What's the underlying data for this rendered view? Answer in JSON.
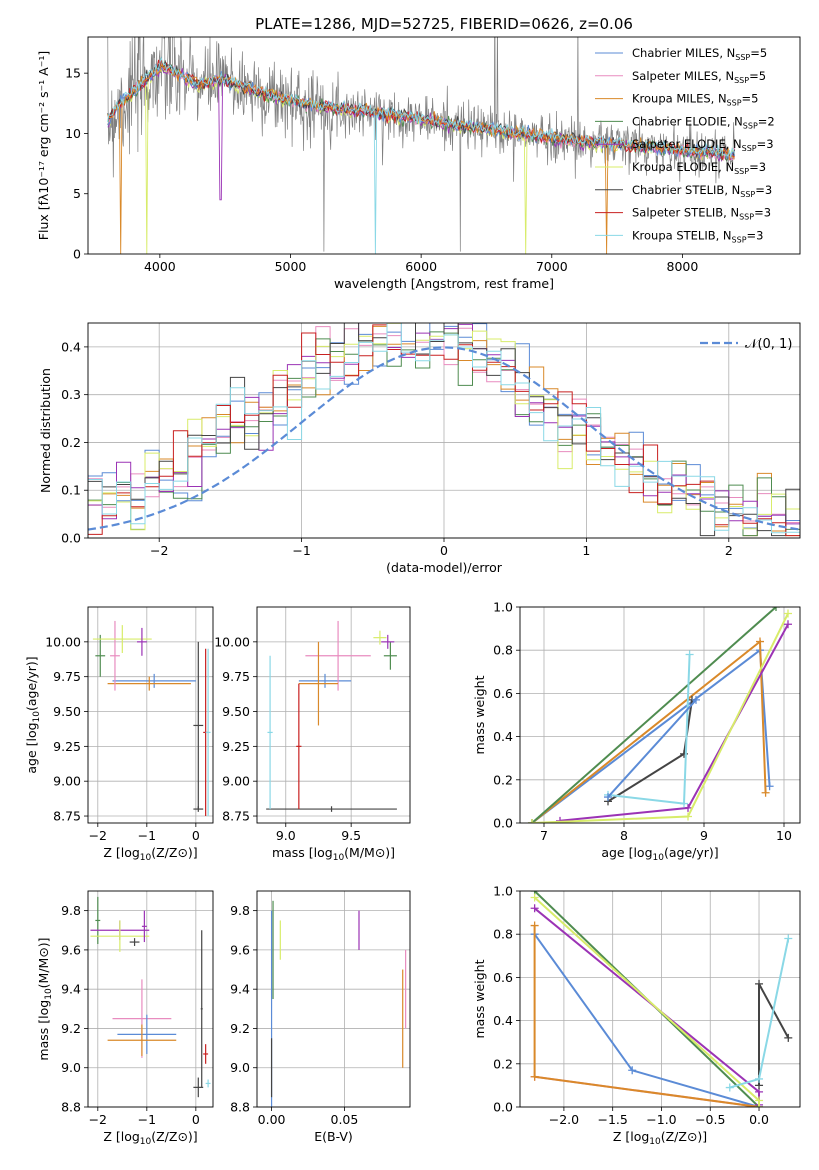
{
  "figure": {
    "title": "PLATE=1286, MJD=52725, FIBERID=0626, z=0.06"
  },
  "colors": {
    "chabrier_miles": "#5b8bd6",
    "salpeter_miles": "#e88cbf",
    "kroupa_miles": "#d9892a",
    "chabrier_elodie": "#4f8c50",
    "salpeter_elodie": "#9b33b5",
    "kroupa_elodie": "#d8ec6a",
    "chabrier_stelib": "#444444",
    "salpeter_stelib": "#c82020",
    "kroupa_stelib": "#8ad8e6",
    "data_spectrum": "#7f7f7f",
    "normal_curve": "#5b8bd6",
    "grid": "#b0b0b0"
  },
  "chart_data": [
    {
      "id": "spectrum",
      "type": "line",
      "title": "PLATE=1286, MJD=52725, FIBERID=0626, z=0.06",
      "xlabel": "wavelength [Angstrom, rest frame]",
      "ylabel": "Flux [fλ10⁻¹⁷ erg cm⁻² s⁻¹ A⁻¹]",
      "xlim": [
        3450,
        8900
      ],
      "ylim": [
        0,
        18
      ],
      "xticks": [
        4000,
        5000,
        6000,
        7000,
        8000
      ],
      "yticks": [
        0,
        5,
        10,
        15
      ],
      "grid": false,
      "legend_position": "top-right",
      "legend": [
        {
          "main": "Chabrier MILES, N",
          "sub": "SSP",
          "suffix": "=5",
          "color": "#5b8bd6"
        },
        {
          "main": "Salpeter MILES, N",
          "sub": "SSP",
          "suffix": "=5",
          "color": "#e88cbf"
        },
        {
          "main": "Kroupa MILES, N",
          "sub": "SSP",
          "suffix": "=5",
          "color": "#d9892a"
        },
        {
          "main": "Chabrier ELODIE, N",
          "sub": "SSP",
          "suffix": "=2",
          "color": "#4f8c50"
        },
        {
          "main": "Salpeter ELODIE, N",
          "sub": "SSP",
          "suffix": "=3",
          "color": "#9b33b5"
        },
        {
          "main": "Kroupa ELODIE, N",
          "sub": "SSP",
          "suffix": "=3",
          "color": "#d8ec6a"
        },
        {
          "main": "Chabrier STELIB, N",
          "sub": "SSP",
          "suffix": "=3",
          "color": "#444444"
        },
        {
          "main": "Salpeter STELIB, N",
          "sub": "SSP",
          "suffix": "=3",
          "color": "#c82020"
        },
        {
          "main": "Kroupa STELIB, N",
          "sub": "SSP",
          "suffix": "=3",
          "color": "#8ad8e6"
        }
      ],
      "continuum_model": {
        "x": [
          3600,
          3700,
          3800,
          3900,
          4000,
          4100,
          4200,
          4300,
          4400,
          4500,
          4600,
          4800,
          5000,
          5200,
          5400,
          5600,
          5800,
          6000,
          6200,
          6400,
          6600,
          6800,
          7000,
          7200,
          7400,
          7600,
          7800,
          8000,
          8200,
          8400
        ],
        "y": [
          11.0,
          12.5,
          13.5,
          14.5,
          15.5,
          15.2,
          14.6,
          14.0,
          14.3,
          14.5,
          14.0,
          13.3,
          12.7,
          12.3,
          12.0,
          11.8,
          11.5,
          11.2,
          10.8,
          10.5,
          10.2,
          9.9,
          9.6,
          9.4,
          9.2,
          9.0,
          8.8,
          8.6,
          8.4,
          8.2
        ]
      },
      "notes_spikes": [
        {
          "x": 3700,
          "series": "Kroupa MILES",
          "drop_to": 0
        },
        {
          "x": 3900,
          "series": "Kroupa ELODIE",
          "drop_to": 0
        },
        {
          "x": 5650,
          "series": "Kroupa STELIB",
          "drop_to": 0
        },
        {
          "x": 6800,
          "series": "Kroupa ELODIE",
          "drop_to": 0
        },
        {
          "x": 7420,
          "series": "Kroupa MILES",
          "drop_to": 0
        }
      ]
    },
    {
      "id": "residuals",
      "type": "line",
      "xlabel": "(data-model)/error",
      "ylabel": "Normed distribution",
      "xlim": [
        -2.5,
        2.5
      ],
      "ylim": [
        0,
        0.45
      ],
      "xticks": [
        -2,
        -1,
        0,
        1,
        2
      ],
      "xtick_labels": [
        "−2",
        "−1",
        "0",
        "1",
        "2"
      ],
      "yticks": [
        0.0,
        0.1,
        0.2,
        0.3,
        0.4
      ],
      "ytick_labels": [
        "0.0",
        "0.1",
        "0.2",
        "0.3",
        "0.4"
      ],
      "grid": true,
      "legend_position": "top-right",
      "legend": [
        {
          "label": "𝒩(0, 1)",
          "color": "#5b8bd6",
          "style": "dashed"
        }
      ],
      "normal_curve": {
        "mean": 0,
        "sigma": 1
      }
    },
    {
      "id": "age_vs_Z",
      "type": "scatter",
      "xlabel_main": "Z [log",
      "xlabel_sub": "10",
      "xlabel_rest": "(Z/Z⊙)]",
      "ylabel_main": "age  [log",
      "ylabel_sub": "10",
      "ylabel_rest": "(age/yr)]",
      "xlim": [
        -2.2,
        0.35
      ],
      "ylim": [
        8.7,
        10.25
      ],
      "xticks": [
        -2,
        -1,
        0
      ],
      "xtick_labels": [
        "−2",
        "−1",
        "0"
      ],
      "yticks": [
        8.75,
        9.0,
        9.25,
        9.5,
        9.75,
        10.0
      ],
      "ytick_labels": [
        "8.75",
        "9.00",
        "9.25",
        "9.50",
        "9.75",
        "10.00"
      ],
      "grid": true,
      "points": [
        {
          "series": "Chabrier MILES",
          "x": -0.85,
          "xerr": 0.85,
          "y": 9.72,
          "yerr": 0.05
        },
        {
          "series": "Kroupa MILES",
          "x": -0.95,
          "xerr": 0.85,
          "y": 9.7,
          "yerr": 0.05
        },
        {
          "series": "Salpeter MILES",
          "x": -1.65,
          "xerr": 0.1,
          "y": 9.9,
          "yerr": 0.25
        },
        {
          "series": "Chabrier ELODIE",
          "x": -1.95,
          "xerr": 0.1,
          "y": 9.9,
          "yerr": 0.15
        },
        {
          "series": "Kroupa ELODIE",
          "x": -1.5,
          "xerr": 0.6,
          "y": 10.02,
          "yerr": 0.1
        },
        {
          "series": "Salpeter ELODIE",
          "x": -1.1,
          "xerr": 0.1,
          "y": 10.0,
          "yerr": 0.1
        },
        {
          "series": "Chabrier STELIB",
          "x": 0.05,
          "xerr": 0.1,
          "y": 9.4,
          "yerr": 0.6
        },
        {
          "series": "Salpeter STELIB",
          "x": 0.2,
          "xerr": 0.05,
          "y": 9.35,
          "yerr": 0.6
        },
        {
          "series": "Kroupa STELIB",
          "x": 0.25,
          "xerr": 0.05,
          "y": 9.35,
          "yerr": 0.6
        },
        {
          "series": "Chabrier STELIB",
          "x": 0.05,
          "xerr": 0.1,
          "y": 8.8,
          "yerr": 0.02
        }
      ]
    },
    {
      "id": "age_vs_mass",
      "type": "scatter",
      "xlabel_main": "mass [log",
      "xlabel_sub": "10",
      "xlabel_rest": "(M/M⊙)]",
      "xlim": [
        8.78,
        9.95
      ],
      "ylim": [
        8.7,
        10.25
      ],
      "xticks": [
        9.0,
        9.5
      ],
      "xtick_labels": [
        "9.0",
        "9.5"
      ],
      "yticks": [
        8.75,
        9.0,
        9.25,
        9.5,
        9.75,
        10.0
      ],
      "ytick_labels": [
        "8.75",
        "9.00",
        "9.25",
        "9.50",
        "9.75",
        "10.00"
      ],
      "grid": true,
      "points": [
        {
          "series": "Chabrier MILES",
          "x": 9.3,
          "xerr": 0.2,
          "y": 9.72,
          "yerr": 0.05
        },
        {
          "series": "Salpeter MILES",
          "x": 9.4,
          "xerr": 0.25,
          "y": 9.9,
          "yerr": 0.25
        },
        {
          "series": "Kroupa MILES",
          "x": 9.25,
          "xerr": 0.15,
          "y": 9.7,
          "yerr": 0.3
        },
        {
          "series": "Chabrier ELODIE",
          "x": 9.8,
          "xerr": 0.05,
          "y": 9.9,
          "yerr": 0.1
        },
        {
          "series": "Kroupa ELODIE",
          "x": 9.72,
          "xerr": 0.05,
          "y": 10.03,
          "yerr": 0.05
        },
        {
          "series": "Salpeter ELODIE",
          "x": 9.78,
          "xerr": 0.05,
          "y": 10.0,
          "yerr": 0.05
        },
        {
          "series": "Chabrier STELIB",
          "x": 9.35,
          "xerr": 0.5,
          "y": 8.8,
          "yerr": 0.02
        },
        {
          "series": "Salpeter STELIB",
          "x": 9.1,
          "xerr": 0.02,
          "y": 9.25,
          "yerr": 0.45
        },
        {
          "series": "Kroupa STELIB",
          "x": 8.88,
          "xerr": 0.02,
          "y": 9.35,
          "yerr": 0.55
        }
      ]
    },
    {
      "id": "massweight_vs_age",
      "type": "line",
      "xlabel_main": "age  [log",
      "xlabel_sub": "10",
      "xlabel_rest": "(age/yr)]",
      "ylabel": "mass weight",
      "xlim": [
        6.7,
        10.2
      ],
      "ylim": [
        0,
        1.0
      ],
      "xticks": [
        7,
        8,
        9,
        10
      ],
      "yticks": [
        0.0,
        0.2,
        0.4,
        0.6,
        0.8,
        1.0
      ],
      "ytick_labels": [
        "0.0",
        "0.2",
        "0.4",
        "0.6",
        "0.8",
        "1.0"
      ],
      "grid": true,
      "series": [
        {
          "name": "Chabrier MILES",
          "color": "#5b8bd6",
          "points": [
            [
              6.85,
              0.0
            ],
            [
              9.7,
              0.8
            ],
            [
              9.82,
              0.17
            ]
          ]
        },
        {
          "name": "Kroupa MILES",
          "color": "#d9892a",
          "points": [
            [
              6.85,
              0.0
            ],
            [
              9.7,
              0.84
            ],
            [
              9.77,
              0.14
            ]
          ]
        },
        {
          "name": "Chabrier ELODIE",
          "color": "#4f8c50",
          "points": [
            [
              6.85,
              0.0
            ],
            [
              9.9,
              1.0
            ]
          ]
        },
        {
          "name": "Salpeter ELODIE",
          "color": "#9b33b5",
          "points": [
            [
              7.2,
              0.01
            ],
            [
              8.8,
              0.07
            ],
            [
              10.05,
              0.92
            ]
          ]
        },
        {
          "name": "Kroupa ELODIE",
          "color": "#d8ec6a",
          "points": [
            [
              6.85,
              0.0
            ],
            [
              8.8,
              0.03
            ],
            [
              10.05,
              0.97
            ]
          ]
        },
        {
          "name": "Chabrier STELIB",
          "color": "#444444",
          "points": [
            [
              7.8,
              0.1
            ],
            [
              8.75,
              0.32
            ],
            [
              8.85,
              0.57
            ]
          ]
        },
        {
          "name": "Kroupa STELIB",
          "color": "#8ad8e6",
          "points": [
            [
              7.8,
              0.13
            ],
            [
              8.75,
              0.09
            ],
            [
              8.82,
              0.78
            ]
          ]
        },
        {
          "name": "Chabrier MILES b",
          "color": "#5b8bd6",
          "points": [
            [
              7.8,
              0.12
            ],
            [
              8.9,
              0.57
            ]
          ]
        }
      ]
    },
    {
      "id": "mass_vs_Z",
      "type": "scatter",
      "xlabel_main": "Z [log",
      "xlabel_sub": "10",
      "xlabel_rest": "(Z/Z⊙)]",
      "ylabel_main": "mass [log",
      "ylabel_sub": "10",
      "ylabel_rest": "(M/M⊙)]",
      "xlim": [
        -2.2,
        0.35
      ],
      "ylim": [
        8.8,
        9.9
      ],
      "xticks": [
        -2,
        -1,
        0
      ],
      "xtick_labels": [
        "−2",
        "−1",
        "0"
      ],
      "yticks": [
        8.8,
        9.0,
        9.2,
        9.4,
        9.6,
        9.8
      ],
      "ytick_labels": [
        "8.8",
        "9.0",
        "9.2",
        "9.4",
        "9.6",
        "9.8"
      ],
      "grid": true,
      "points": [
        {
          "series": "Chabrier ELODIE",
          "x": -2.0,
          "xerr": 0.05,
          "y": 9.75,
          "yerr": 0.12
        },
        {
          "series": "Salpeter ELODIE",
          "x": -1.55,
          "xerr": 0.6,
          "y": 9.7,
          "yerr": 0.05
        },
        {
          "series": "Kroupa ELODIE",
          "x": -1.55,
          "xerr": 0.6,
          "y": 9.67,
          "yerr": 0.08
        },
        {
          "series": "Chabrier STELIB",
          "x": -1.25,
          "xerr": 0.1,
          "y": 9.64,
          "yerr": 0.02
        },
        {
          "series": "Salpeter ELODIE",
          "x": -1.05,
          "xerr": 0.05,
          "y": 9.72,
          "yerr": 0.08
        },
        {
          "series": "Salpeter MILES",
          "x": -1.1,
          "xerr": 0.6,
          "y": 9.25,
          "yerr": 0.2
        },
        {
          "series": "Chabrier MILES",
          "x": -1.0,
          "xerr": 0.6,
          "y": 9.17,
          "yerr": 0.1
        },
        {
          "series": "Kroupa MILES",
          "x": -1.1,
          "xerr": 0.7,
          "y": 9.14,
          "yerr": 0.08
        },
        {
          "series": "Chabrier STELIB",
          "x": 0.05,
          "xerr": 0.1,
          "y": 8.9,
          "yerr": 0.05
        },
        {
          "series": "Salpeter STELIB",
          "x": 0.2,
          "xerr": 0.05,
          "y": 9.07,
          "yerr": 0.05
        },
        {
          "series": "Kroupa STELIB",
          "x": 0.25,
          "xerr": 0.05,
          "y": 8.92,
          "yerr": 0.02
        },
        {
          "series": "Chabrier STELIB",
          "x": 0.12,
          "xerr": 0.02,
          "y": 9.3,
          "yerr": 0.4
        }
      ]
    },
    {
      "id": "mass_vs_EBV",
      "type": "scatter",
      "xlabel": "E(B-V)",
      "xlim": [
        -0.01,
        0.095
      ],
      "ylim": [
        8.8,
        9.9
      ],
      "xticks": [
        0.0,
        0.05
      ],
      "xtick_labels": [
        "0.00",
        "0.05"
      ],
      "yticks": [
        8.8,
        9.0,
        9.2,
        9.4,
        9.6,
        9.8
      ],
      "ytick_labels": [
        "8.8",
        "9.0",
        "9.2",
        "9.4",
        "9.6",
        "9.8"
      ],
      "grid": true,
      "points": [
        {
          "series": "Chabrier MILES",
          "x": 0.0,
          "xerr": 0.0,
          "y": 9.3,
          "yerr": 0.5
        },
        {
          "series": "Chabrier ELODIE",
          "x": 0.001,
          "xerr": 0.0,
          "y": 9.6,
          "yerr": 0.25
        },
        {
          "series": "Kroupa ELODIE",
          "x": 0.006,
          "xerr": 0.0,
          "y": 9.65,
          "yerr": 0.1
        },
        {
          "series": "Salpeter ELODIE",
          "x": 0.06,
          "xerr": 0.0,
          "y": 9.7,
          "yerr": 0.1
        },
        {
          "series": "Salpeter MILES",
          "x": 0.092,
          "xerr": 0.0,
          "y": 9.4,
          "yerr": 0.2
        },
        {
          "series": "Kroupa MILES",
          "x": 0.09,
          "xerr": 0.0,
          "y": 9.25,
          "yerr": 0.25
        },
        {
          "series": "Chabrier STELIB",
          "x": 0.0,
          "xerr": 0.0,
          "y": 9.0,
          "yerr": 0.15
        }
      ]
    },
    {
      "id": "massweight_vs_Z",
      "type": "line",
      "xlabel_main": "Z [log",
      "xlabel_sub": "10",
      "xlabel_rest": "(Z/Z⊙)]",
      "ylabel": "mass weight",
      "xlim": [
        -2.45,
        0.42
      ],
      "ylim": [
        0,
        1.0
      ],
      "xticks": [
        -2.0,
        -1.5,
        -1.0,
        -0.5,
        0.0
      ],
      "xtick_labels": [
        "−2.0",
        "−1.5",
        "−1.0",
        "−0.5",
        "0.0"
      ],
      "yticks": [
        0.0,
        0.2,
        0.4,
        0.6,
        0.8,
        1.0
      ],
      "ytick_labels": [
        "0.0",
        "0.2",
        "0.4",
        "0.6",
        "0.8",
        "1.0"
      ],
      "grid": true,
      "series": [
        {
          "name": "Chabrier MILES",
          "color": "#5b8bd6",
          "points": [
            [
              -2.3,
              0.8
            ],
            [
              -1.3,
              0.17
            ],
            [
              0.0,
              0.0
            ]
          ]
        },
        {
          "name": "Salpeter MILES",
          "color": "#e88cbf",
          "points": [
            [
              -2.3,
              0.14
            ],
            [
              0.0,
              0.0
            ]
          ]
        },
        {
          "name": "Kroupa MILES",
          "color": "#d9892a",
          "points": [
            [
              -2.3,
              0.84
            ],
            [
              -2.3,
              0.14
            ],
            [
              0.0,
              0.0
            ]
          ]
        },
        {
          "name": "Chabrier ELODIE",
          "color": "#4f8c50",
          "points": [
            [
              -2.3,
              1.0
            ],
            [
              0.0,
              0.0
            ]
          ]
        },
        {
          "name": "Salpeter ELODIE",
          "color": "#9b33b5",
          "points": [
            [
              -2.3,
              0.92
            ],
            [
              0.0,
              0.07
            ],
            [
              0.0,
              0.01
            ]
          ]
        },
        {
          "name": "Kroupa ELODIE",
          "color": "#d8ec6a",
          "points": [
            [
              -2.3,
              0.97
            ],
            [
              0.0,
              0.03
            ],
            [
              0.0,
              0.0
            ]
          ]
        },
        {
          "name": "Chabrier STELIB",
          "color": "#444444",
          "points": [
            [
              0.0,
              0.1
            ],
            [
              0.0,
              0.57
            ],
            [
              0.3,
              0.32
            ]
          ]
        },
        {
          "name": "Kroupa STELIB",
          "color": "#8ad8e6",
          "points": [
            [
              -0.3,
              0.09
            ],
            [
              0.0,
              0.13
            ],
            [
              0.3,
              0.78
            ]
          ]
        }
      ]
    }
  ]
}
